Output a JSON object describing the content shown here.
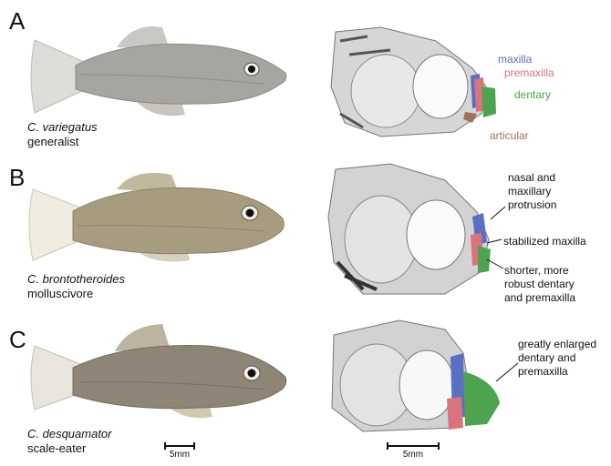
{
  "panels": [
    {
      "letter": "A",
      "species": "C. variegatus",
      "diet": "generalist",
      "labels": {
        "maxilla": "maxilla",
        "premaxilla": "premaxilla",
        "dentary": "dentary",
        "articular": "articular"
      }
    },
    {
      "letter": "B",
      "species": "C. brontotheroides",
      "diet": "molluscivore",
      "annotations": [
        "nasal and\nmaxillary\nprotrusion",
        "stabilized maxilla",
        "shorter, more\nrobust dentary\nand premaxilla"
      ]
    },
    {
      "letter": "C",
      "species": "C. desquamator",
      "diet": "scale-eater",
      "annotations": [
        "greatly enlarged\ndentary and\npremaxilla"
      ]
    }
  ],
  "scalebars": {
    "fish": "5mm",
    "skull": "5mm"
  },
  "colors": {
    "maxilla": "#5b6fc4",
    "premaxilla": "#d9737e",
    "dentary": "#4ea34e",
    "articular": "#a0735a"
  }
}
